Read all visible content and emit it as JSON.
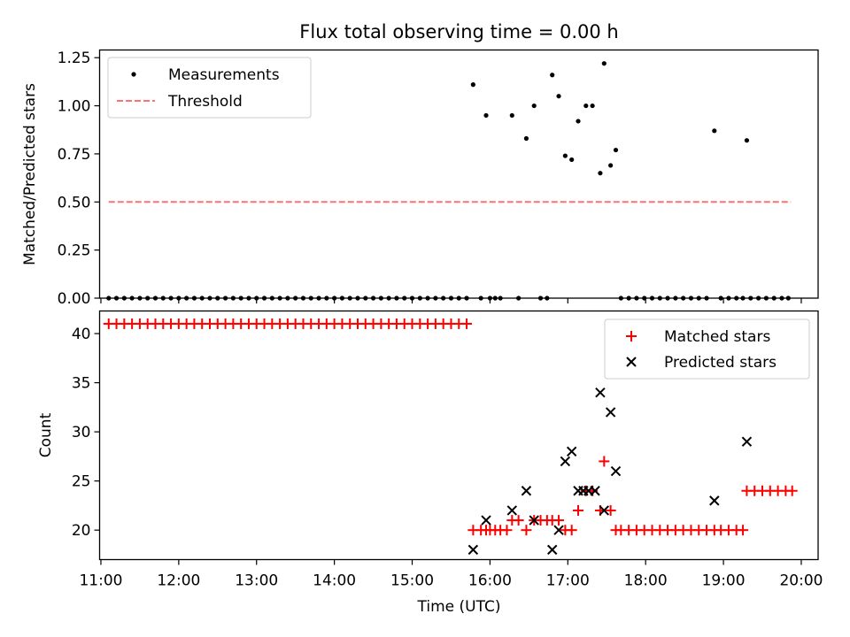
{
  "chart_data": [
    {
      "type": "scatter",
      "title": "Flux total observing time = 0.00 h",
      "xlabel": "",
      "ylabel": "Matched/Predicted stars",
      "ylim": [
        0,
        1.29
      ],
      "xlim": [
        "10:59",
        "20:13"
      ],
      "yticks": [
        "0.00",
        "0.25",
        "0.50",
        "0.75",
        "1.00",
        "1.25"
      ],
      "legend_position": "top-left",
      "series": [
        {
          "name": "Measurements",
          "color": "#000000",
          "marker": "dot",
          "points": [
            [
              "11:06",
              0
            ],
            [
              "11:12",
              0
            ],
            [
              "11:18",
              0
            ],
            [
              "11:24",
              0
            ],
            [
              "11:30",
              0
            ],
            [
              "11:36",
              0
            ],
            [
              "11:42",
              0
            ],
            [
              "11:48",
              0
            ],
            [
              "11:54",
              0
            ],
            [
              "12:00",
              0
            ],
            [
              "12:06",
              0
            ],
            [
              "12:12",
              0
            ],
            [
              "12:18",
              0
            ],
            [
              "12:24",
              0
            ],
            [
              "12:30",
              0
            ],
            [
              "12:36",
              0
            ],
            [
              "12:42",
              0
            ],
            [
              "12:48",
              0
            ],
            [
              "12:54",
              0
            ],
            [
              "13:00",
              0
            ],
            [
              "13:06",
              0
            ],
            [
              "13:12",
              0
            ],
            [
              "13:18",
              0
            ],
            [
              "13:24",
              0
            ],
            [
              "13:30",
              0
            ],
            [
              "13:36",
              0
            ],
            [
              "13:42",
              0
            ],
            [
              "13:48",
              0
            ],
            [
              "13:54",
              0
            ],
            [
              "14:00",
              0
            ],
            [
              "14:06",
              0
            ],
            [
              "14:12",
              0
            ],
            [
              "14:18",
              0
            ],
            [
              "14:24",
              0
            ],
            [
              "14:30",
              0
            ],
            [
              "14:36",
              0
            ],
            [
              "14:42",
              0
            ],
            [
              "14:48",
              0
            ],
            [
              "14:54",
              0
            ],
            [
              "15:00",
              0
            ],
            [
              "15:06",
              0
            ],
            [
              "15:12",
              0
            ],
            [
              "15:18",
              0
            ],
            [
              "15:24",
              0
            ],
            [
              "15:30",
              0
            ],
            [
              "15:36",
              0
            ],
            [
              "15:42",
              0
            ],
            [
              "15:47",
              1.11
            ],
            [
              "15:53",
              0
            ],
            [
              "15:57",
              0.95
            ],
            [
              "16:00",
              0
            ],
            [
              "16:04",
              0
            ],
            [
              "16:08",
              0
            ],
            [
              "16:17",
              0.95
            ],
            [
              "16:22",
              0
            ],
            [
              "16:28",
              0.83
            ],
            [
              "16:34",
              1.0
            ],
            [
              "16:39",
              0
            ],
            [
              "16:44",
              0
            ],
            [
              "16:48",
              1.16
            ],
            [
              "16:53",
              1.05
            ],
            [
              "16:58",
              0.74
            ],
            [
              "17:03",
              0.72
            ],
            [
              "17:08",
              0.92
            ],
            [
              "17:14",
              1.0
            ],
            [
              "17:19",
              1.0
            ],
            [
              "17:25",
              0.65
            ],
            [
              "17:28",
              1.22
            ],
            [
              "17:33",
              0.69
            ],
            [
              "17:37",
              0.77
            ],
            [
              "17:41",
              0
            ],
            [
              "17:47",
              0
            ],
            [
              "17:53",
              0
            ],
            [
              "17:59",
              0
            ],
            [
              "18:05",
              0
            ],
            [
              "18:11",
              0
            ],
            [
              "18:17",
              0
            ],
            [
              "18:23",
              0
            ],
            [
              "18:29",
              0
            ],
            [
              "18:35",
              0
            ],
            [
              "18:41",
              0
            ],
            [
              "18:47",
              0
            ],
            [
              "18:53",
              0.87
            ],
            [
              "18:58",
              0
            ],
            [
              "19:04",
              0
            ],
            [
              "19:10",
              0
            ],
            [
              "19:15",
              0
            ],
            [
              "19:18",
              0.82
            ],
            [
              "19:21",
              0
            ],
            [
              "19:27",
              0
            ],
            [
              "19:33",
              0
            ],
            [
              "19:39",
              0
            ],
            [
              "19:45",
              0
            ],
            [
              "19:50",
              0
            ]
          ]
        },
        {
          "name": "Threshold",
          "color": "#ff7070",
          "style": "dashed",
          "points": [
            [
              "11:06",
              0.5
            ],
            [
              "19:52",
              0.5
            ]
          ]
        }
      ]
    },
    {
      "type": "scatter",
      "title": "",
      "xlabel": "Time (UTC)",
      "ylabel": "Count",
      "ylim": [
        17,
        42.3
      ],
      "xlim": [
        "10:59",
        "20:13"
      ],
      "xticks": [
        "11:00",
        "12:00",
        "13:00",
        "14:00",
        "15:00",
        "16:00",
        "17:00",
        "18:00",
        "19:00",
        "20:00"
      ],
      "yticks": [
        "20",
        "25",
        "30",
        "35",
        "40"
      ],
      "legend_position": "top-right",
      "series": [
        {
          "name": "Matched stars",
          "color": "#ff0000",
          "marker": "plus",
          "points": [
            [
              "11:06",
              41
            ],
            [
              "11:12",
              41
            ],
            [
              "11:18",
              41
            ],
            [
              "11:24",
              41
            ],
            [
              "11:30",
              41
            ],
            [
              "11:36",
              41
            ],
            [
              "11:42",
              41
            ],
            [
              "11:48",
              41
            ],
            [
              "11:54",
              41
            ],
            [
              "12:00",
              41
            ],
            [
              "12:06",
              41
            ],
            [
              "12:12",
              41
            ],
            [
              "12:18",
              41
            ],
            [
              "12:24",
              41
            ],
            [
              "12:30",
              41
            ],
            [
              "12:36",
              41
            ],
            [
              "12:42",
              41
            ],
            [
              "12:48",
              41
            ],
            [
              "12:54",
              41
            ],
            [
              "13:00",
              41
            ],
            [
              "13:06",
              41
            ],
            [
              "13:12",
              41
            ],
            [
              "13:18",
              41
            ],
            [
              "13:24",
              41
            ],
            [
              "13:30",
              41
            ],
            [
              "13:36",
              41
            ],
            [
              "13:42",
              41
            ],
            [
              "13:48",
              41
            ],
            [
              "13:54",
              41
            ],
            [
              "14:00",
              41
            ],
            [
              "14:06",
              41
            ],
            [
              "14:12",
              41
            ],
            [
              "14:18",
              41
            ],
            [
              "14:24",
              41
            ],
            [
              "14:30",
              41
            ],
            [
              "14:36",
              41
            ],
            [
              "14:42",
              41
            ],
            [
              "14:48",
              41
            ],
            [
              "14:54",
              41
            ],
            [
              "15:00",
              41
            ],
            [
              "15:06",
              41
            ],
            [
              "15:12",
              41
            ],
            [
              "15:18",
              41
            ],
            [
              "15:24",
              41
            ],
            [
              "15:30",
              41
            ],
            [
              "15:36",
              41
            ],
            [
              "15:42",
              41
            ],
            [
              "15:47",
              20
            ],
            [
              "15:53",
              20
            ],
            [
              "15:57",
              20
            ],
            [
              "16:00",
              20
            ],
            [
              "16:04",
              20
            ],
            [
              "16:08",
              20
            ],
            [
              "16:13",
              20
            ],
            [
              "16:17",
              21
            ],
            [
              "16:22",
              21
            ],
            [
              "16:28",
              20
            ],
            [
              "16:34",
              21
            ],
            [
              "16:39",
              21
            ],
            [
              "16:44",
              21
            ],
            [
              "16:48",
              21
            ],
            [
              "16:53",
              21
            ],
            [
              "16:58",
              20
            ],
            [
              "17:03",
              20
            ],
            [
              "17:08",
              22
            ],
            [
              "17:14",
              24
            ],
            [
              "17:19",
              24
            ],
            [
              "17:25",
              22
            ],
            [
              "17:28",
              27
            ],
            [
              "17:33",
              22
            ],
            [
              "17:37",
              20
            ],
            [
              "17:41",
              20
            ],
            [
              "17:47",
              20
            ],
            [
              "17:53",
              20
            ],
            [
              "17:59",
              20
            ],
            [
              "18:05",
              20
            ],
            [
              "18:11",
              20
            ],
            [
              "18:17",
              20
            ],
            [
              "18:23",
              20
            ],
            [
              "18:29",
              20
            ],
            [
              "18:35",
              20
            ],
            [
              "18:41",
              20
            ],
            [
              "18:47",
              20
            ],
            [
              "18:53",
              20
            ],
            [
              "18:58",
              20
            ],
            [
              "19:04",
              20
            ],
            [
              "19:10",
              20
            ],
            [
              "19:15",
              20
            ],
            [
              "19:18",
              24
            ],
            [
              "19:24",
              24
            ],
            [
              "19:30",
              24
            ],
            [
              "19:36",
              24
            ],
            [
              "19:42",
              24
            ],
            [
              "19:48",
              24
            ],
            [
              "19:53",
              24
            ]
          ]
        },
        {
          "name": "Predicted stars",
          "color": "#000000",
          "marker": "x",
          "points": [
            [
              "15:47",
              18
            ],
            [
              "15:57",
              21
            ],
            [
              "16:17",
              22
            ],
            [
              "16:28",
              24
            ],
            [
              "16:34",
              21
            ],
            [
              "16:48",
              18
            ],
            [
              "16:53",
              20
            ],
            [
              "16:58",
              27
            ],
            [
              "17:03",
              28
            ],
            [
              "17:08",
              24
            ],
            [
              "17:12",
              24
            ],
            [
              "17:16",
              24
            ],
            [
              "17:21",
              24
            ],
            [
              "17:25",
              34
            ],
            [
              "17:28",
              22
            ],
            [
              "17:33",
              32
            ],
            [
              "17:37",
              26
            ],
            [
              "18:53",
              23
            ],
            [
              "19:18",
              29
            ]
          ]
        }
      ]
    }
  ]
}
